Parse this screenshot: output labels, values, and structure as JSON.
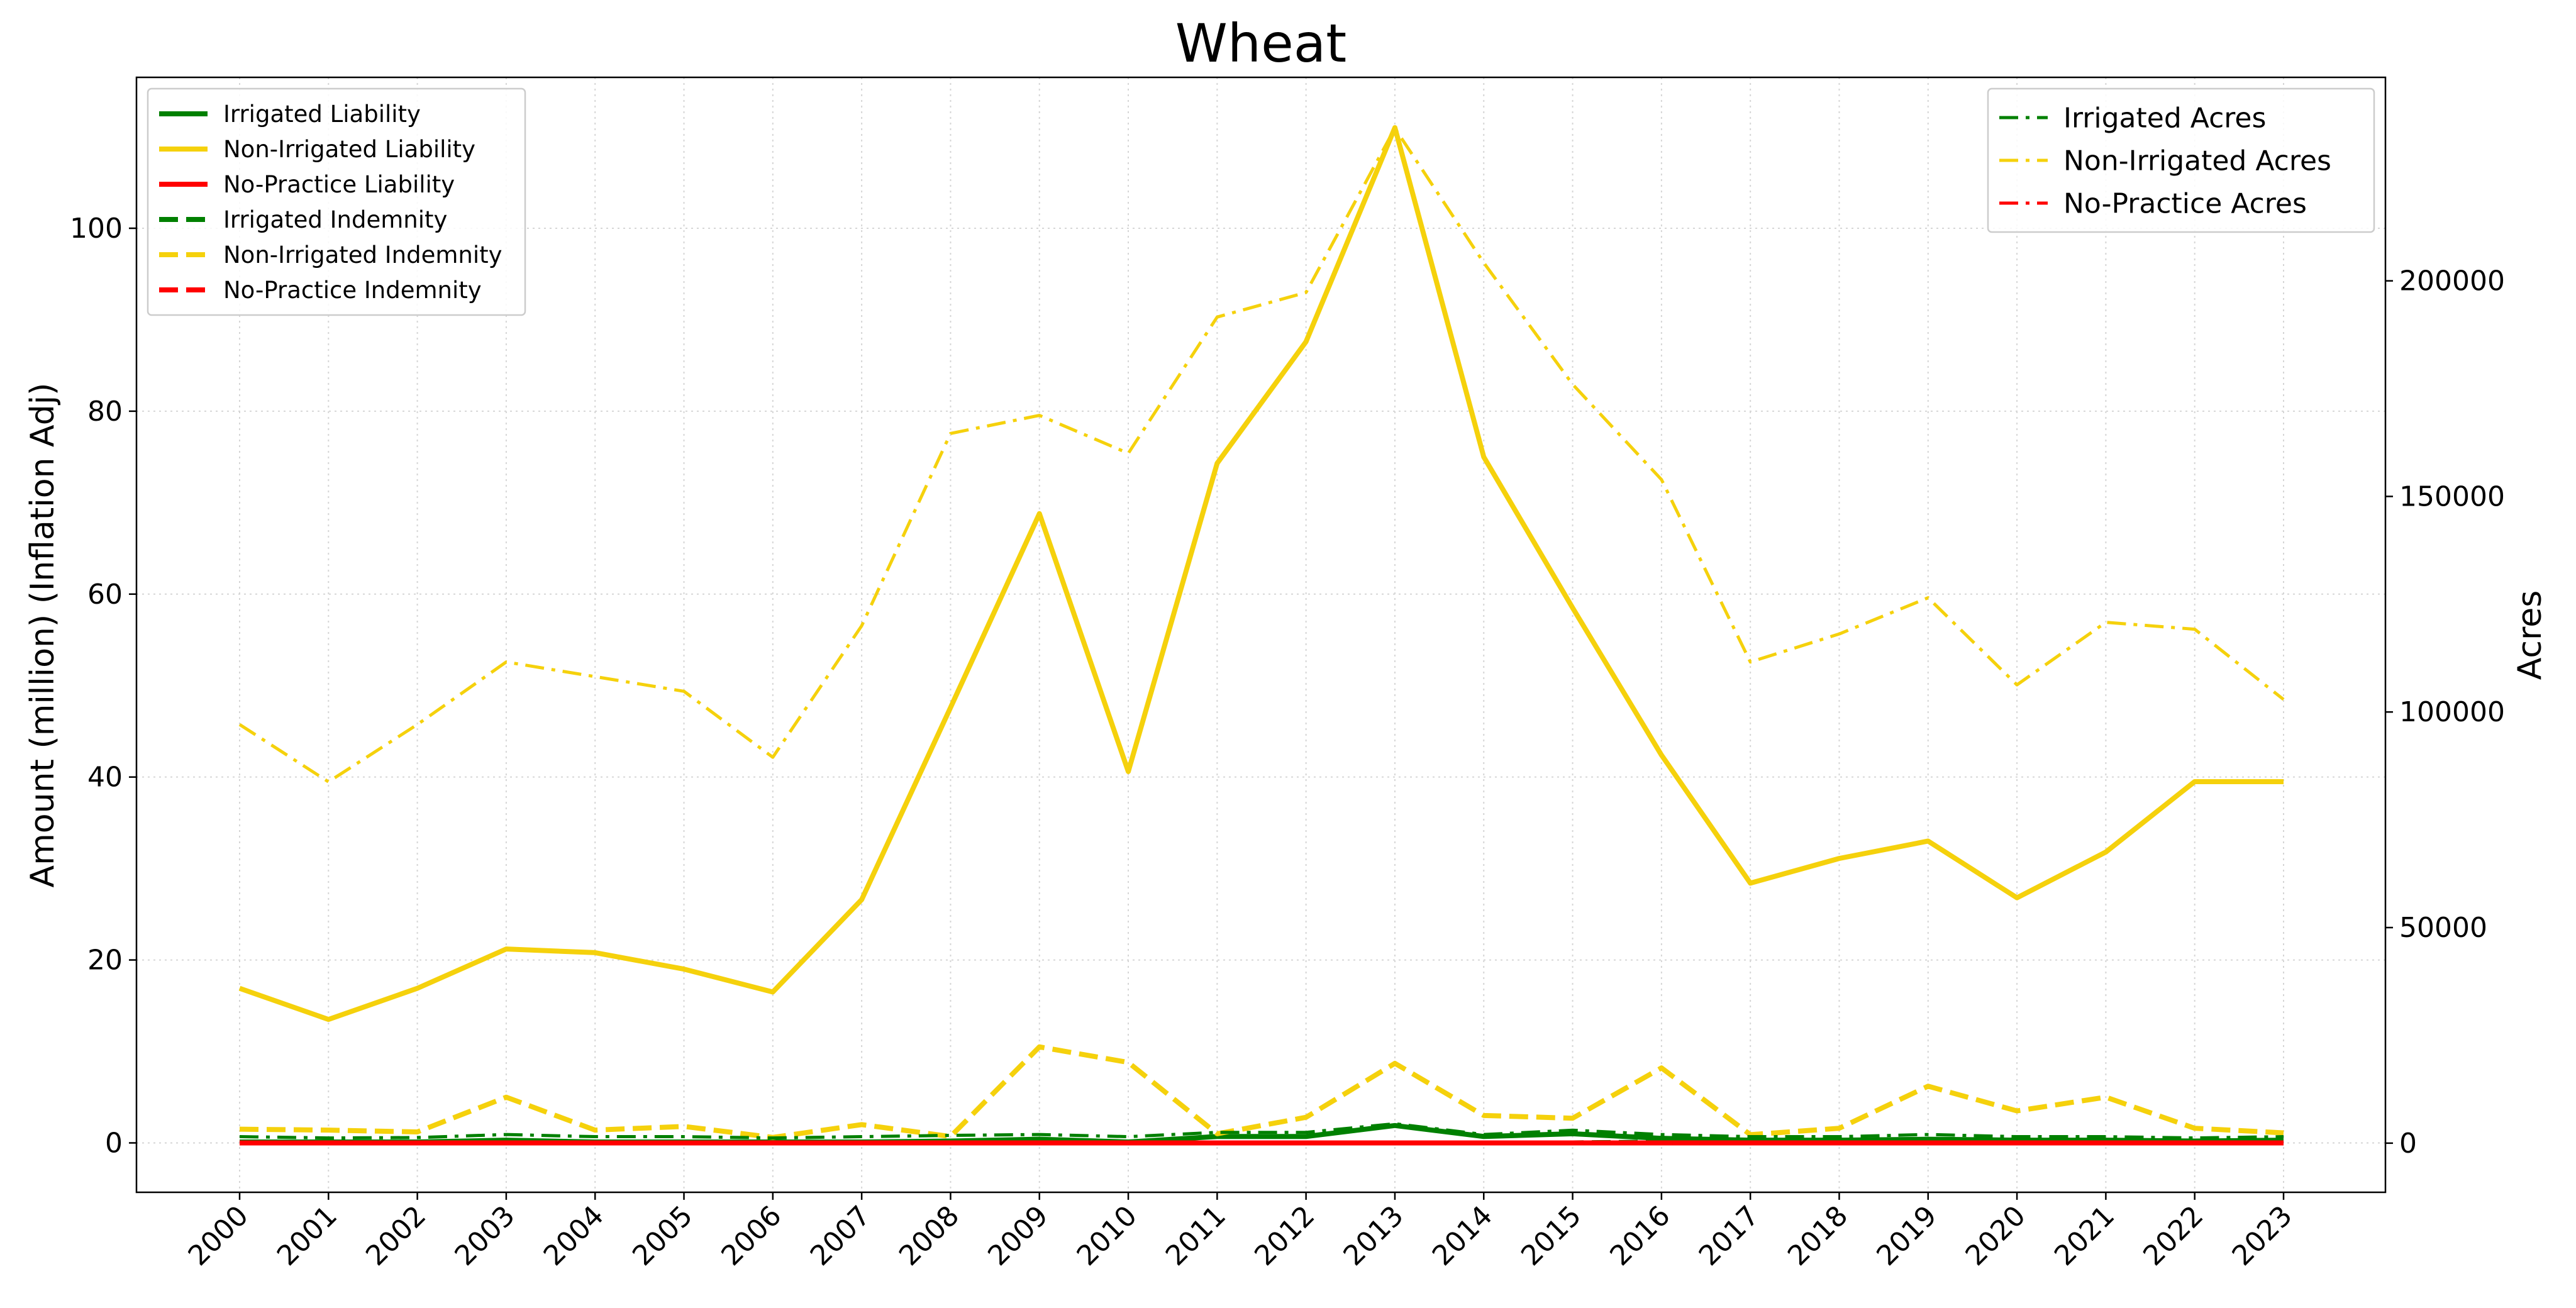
{
  "chart_data": {
    "type": "line",
    "title": "Wheat",
    "ylabel": "Amount (million) (Inflation Adj)",
    "y2label": "Acres",
    "categories": [
      "2000",
      "2001",
      "2002",
      "2003",
      "2004",
      "2005",
      "2006",
      "2007",
      "2008",
      "2009",
      "2010",
      "2011",
      "2012",
      "2013",
      "2014",
      "2015",
      "2016",
      "2017",
      "2018",
      "2019",
      "2020",
      "2021",
      "2022",
      "2023"
    ],
    "series": [
      {
        "name": "Irrigated Liability",
        "color": "#008000",
        "style": "solid",
        "axis": "y",
        "values": [
          0.1,
          0.1,
          0.1,
          0.3,
          0.1,
          0.1,
          0.1,
          0.1,
          0.2,
          0.4,
          0.1,
          0.7,
          0.7,
          1.9,
          0.7,
          1.0,
          0.5,
          0.3,
          0.3,
          0.4,
          0.3,
          0.3,
          0.2,
          0.3
        ]
      },
      {
        "name": "Non-Irrigated Liability",
        "color": "#f5d10c",
        "style": "solid",
        "axis": "y",
        "values": [
          16.9,
          13.5,
          16.9,
          21.2,
          20.8,
          19.0,
          16.5,
          26.6,
          47.6,
          68.8,
          40.6,
          74.3,
          87.6,
          111,
          75.0,
          58.5,
          42.4,
          28.4,
          31.1,
          33.0,
          26.8,
          31.8,
          39.5,
          39.5
        ]
      },
      {
        "name": "No-Practice Liability",
        "color": "#ff0000",
        "style": "solid",
        "axis": "y",
        "values": [
          0,
          0,
          0,
          0,
          0,
          0,
          0,
          0,
          0,
          0,
          0,
          0,
          0,
          0,
          0,
          0,
          0,
          0,
          0,
          0,
          0,
          0,
          0,
          0
        ]
      },
      {
        "name": "Irrigated Indemnity",
        "color": "#008000",
        "style": "dashed",
        "axis": "y",
        "values": [
          0,
          0,
          0,
          0,
          0,
          0,
          0,
          0,
          0,
          0,
          0,
          0,
          0,
          0,
          0,
          0,
          0.1,
          0,
          0,
          0,
          0,
          0,
          0,
          0
        ]
      },
      {
        "name": "Non-Irrigated Indemnity",
        "color": "#f5d10c",
        "style": "dashed",
        "axis": "y",
        "values": [
          1.5,
          1.4,
          1.2,
          5.0,
          1.4,
          1.8,
          0.6,
          2.0,
          0.7,
          10.5,
          8.8,
          1.0,
          2.8,
          8.7,
          3.0,
          2.7,
          8.2,
          0.9,
          1.6,
          6.2,
          3.5,
          5.0,
          1.6,
          1.1
        ]
      },
      {
        "name": "No-Practice Indemnity",
        "color": "#ff0000",
        "style": "dashed",
        "axis": "y",
        "values": [
          0,
          0,
          0,
          0,
          0,
          0,
          0,
          0,
          0,
          0,
          0,
          0,
          0,
          0,
          0,
          0,
          0,
          0,
          0,
          0,
          0,
          0,
          0,
          0
        ]
      },
      {
        "name": "Irrigated Acres",
        "color": "#008000",
        "style": "dashdot",
        "axis": "y2",
        "values": [
          1500,
          1200,
          1300,
          2000,
          1500,
          1500,
          1200,
          1500,
          1800,
          2000,
          1500,
          2500,
          2500,
          4500,
          2000,
          3000,
          2000,
          1500,
          1500,
          2000,
          1500,
          1500,
          1200,
          1500
        ]
      },
      {
        "name": "Non-Irrigated Acres",
        "color": "#f5d10c",
        "style": "dashdot",
        "axis": "y2",
        "values": [
          97100,
          83800,
          97100,
          111600,
          108200,
          104800,
          89500,
          120000,
          164600,
          168800,
          160000,
          191600,
          197300,
          235400,
          204200,
          176000,
          153900,
          111600,
          118100,
          126500,
          106300,
          120800,
          119200,
          102900
        ]
      },
      {
        "name": "No-Practice Acres",
        "color": "#ff0000",
        "style": "dashdot",
        "axis": "y2",
        "values": [
          0,
          0,
          0,
          0,
          0,
          0,
          0,
          0,
          0,
          0,
          0,
          0,
          0,
          0,
          0,
          0,
          0,
          0,
          0,
          0,
          0,
          0,
          0,
          0
        ]
      }
    ],
    "ylim": [
      -5.4,
      116.5
    ],
    "yticks": [
      0,
      20,
      40,
      60,
      80,
      100
    ],
    "y2lim": [
      -11400,
      247200
    ],
    "y2ticks": [
      0,
      50000,
      100000,
      150000,
      200000
    ],
    "grid": true,
    "legend_loc": "upper left",
    "legend2_loc": "upper right"
  }
}
